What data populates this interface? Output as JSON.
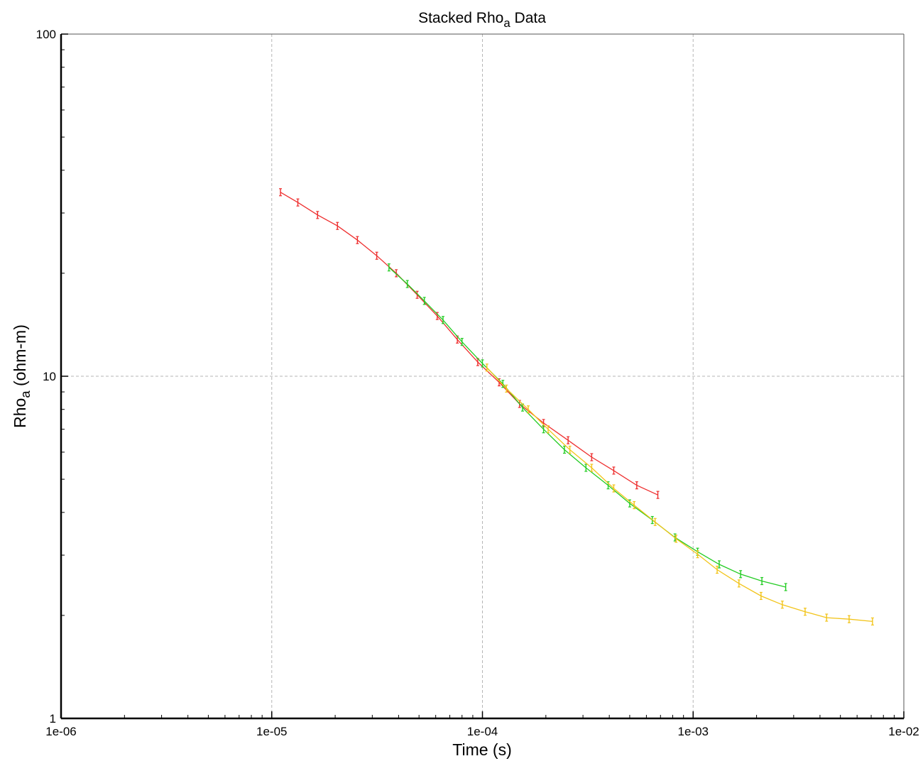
{
  "chart_data": {
    "type": "line",
    "title": "Stacked Rho",
    "title_subscript": "a",
    "title_suffix": " Data",
    "xlabel": "Time (s)",
    "ylabel": "Rho",
    "ylabel_subscript": "a",
    "ylabel_suffix": " (ohm-m)",
    "xscale": "log",
    "yscale": "log",
    "xlim": [
      1e-06,
      0.01
    ],
    "ylim": [
      1,
      100
    ],
    "grid": true,
    "legend": "none",
    "x_tick_labels": [
      "1e-06",
      "1e-05",
      "1e-04",
      "1e-03",
      "1e-02"
    ],
    "x_tick_values": [
      1e-06,
      1e-05,
      0.0001,
      0.001,
      0.01
    ],
    "y_tick_labels": [
      "1",
      "10",
      "100"
    ],
    "y_tick_values": [
      1,
      10,
      100
    ],
    "series": [
      {
        "color": "#ee2e2e",
        "points": [
          [
            1.1e-05,
            34.5
          ],
          [
            1.33e-05,
            32.2
          ],
          [
            1.65e-05,
            29.6
          ],
          [
            2.05e-05,
            27.5
          ],
          [
            2.55e-05,
            25.0
          ],
          [
            3.15e-05,
            22.5
          ],
          [
            3.9e-05,
            20.0
          ],
          [
            4.9e-05,
            17.3
          ],
          [
            6.1e-05,
            15.0
          ],
          [
            7.6e-05,
            12.8
          ],
          [
            9.5e-05,
            11.0
          ],
          [
            0.00012,
            9.6
          ],
          [
            0.00015,
            8.3
          ],
          [
            0.000195,
            7.3
          ],
          [
            0.000255,
            6.5
          ],
          [
            0.00033,
            5.8
          ],
          [
            0.00042,
            5.3
          ],
          [
            0.00054,
            4.8
          ],
          [
            0.00068,
            4.5
          ]
        ]
      },
      {
        "color": "#22cc22",
        "points": [
          [
            3.6e-05,
            20.8
          ],
          [
            4.4e-05,
            18.6
          ],
          [
            5.3e-05,
            16.6
          ],
          [
            6.5e-05,
            14.6
          ],
          [
            8e-05,
            12.6
          ],
          [
            0.0001,
            10.9
          ],
          [
            0.000125,
            9.5
          ],
          [
            0.000155,
            8.1
          ],
          [
            0.000195,
            7.0
          ],
          [
            0.000245,
            6.1
          ],
          [
            0.00031,
            5.4
          ],
          [
            0.000395,
            4.8
          ],
          [
            0.0005,
            4.25
          ],
          [
            0.00064,
            3.8
          ],
          [
            0.00082,
            3.38
          ],
          [
            0.00105,
            3.07
          ],
          [
            0.00133,
            2.82
          ],
          [
            0.00168,
            2.64
          ],
          [
            0.00212,
            2.52
          ],
          [
            0.00275,
            2.42
          ]
        ]
      },
      {
        "color": "#f2c41a",
        "points": [
          [
            0.000105,
            10.6
          ],
          [
            0.00013,
            9.2
          ],
          [
            0.000165,
            8.0
          ],
          [
            0.000205,
            7.0
          ],
          [
            0.00026,
            6.1
          ],
          [
            0.00033,
            5.4
          ],
          [
            0.00042,
            4.7
          ],
          [
            0.000525,
            4.2
          ],
          [
            0.00066,
            3.75
          ],
          [
            0.00083,
            3.35
          ],
          [
            0.00105,
            3.02
          ],
          [
            0.0013,
            2.72
          ],
          [
            0.00165,
            2.48
          ],
          [
            0.0021,
            2.28
          ],
          [
            0.00265,
            2.15
          ],
          [
            0.0034,
            2.05
          ],
          [
            0.0043,
            1.97
          ],
          [
            0.0055,
            1.95
          ],
          [
            0.0071,
            1.92
          ]
        ]
      }
    ]
  }
}
